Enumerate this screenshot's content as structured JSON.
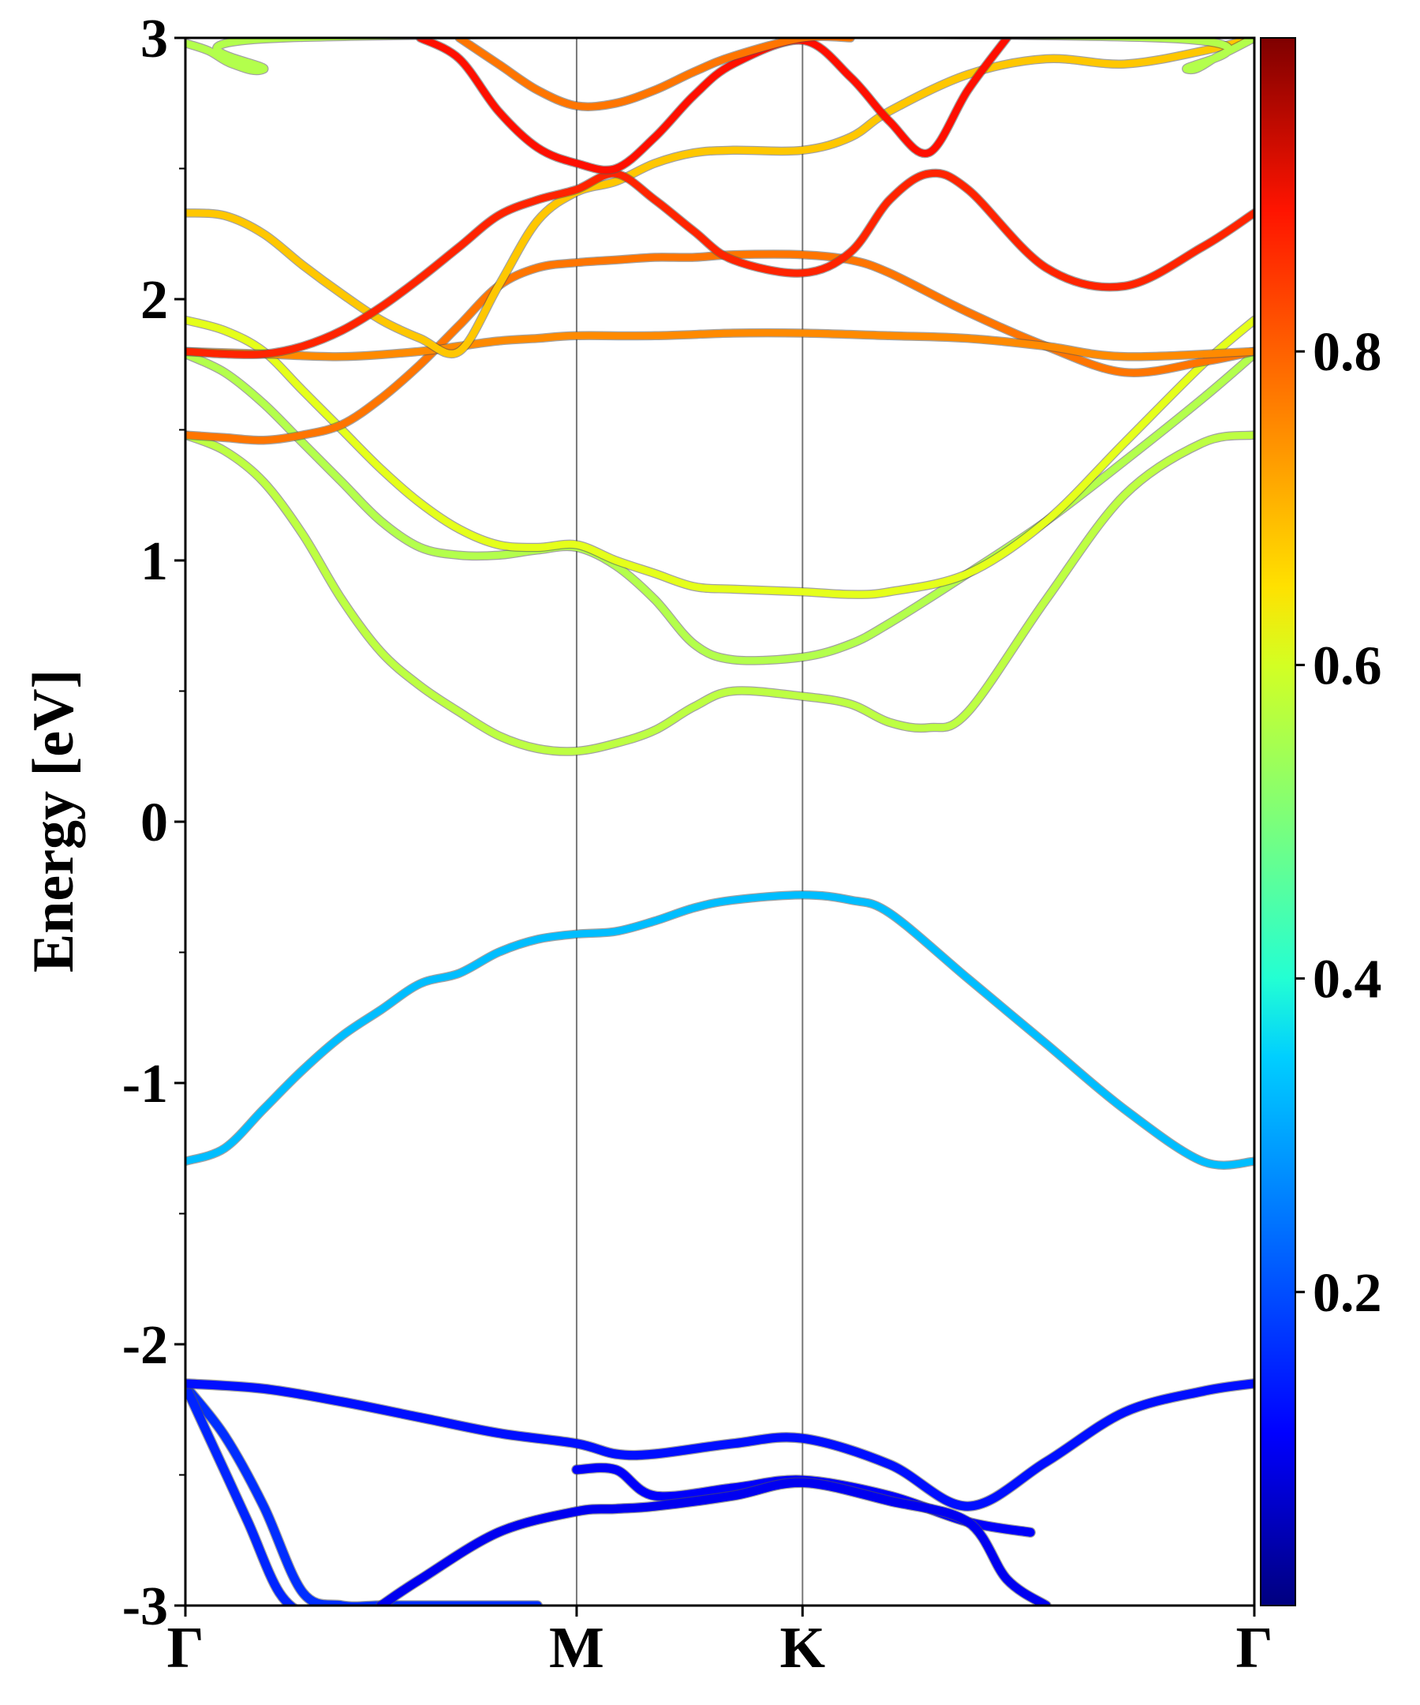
{
  "chart_data": {
    "type": "line",
    "title": "",
    "ylabel": "Energy [eV]",
    "xlabel": "",
    "ylim": [
      -3,
      3
    ],
    "y_ticks": [
      {
        "value": 3,
        "label": "3"
      },
      {
        "value": 2,
        "label": "2"
      },
      {
        "value": 1,
        "label": "1"
      },
      {
        "value": 0,
        "label": "0"
      },
      {
        "value": -1,
        "label": "-1"
      },
      {
        "value": -2,
        "label": "-2"
      },
      {
        "value": -3,
        "label": "-3"
      }
    ],
    "k_points": [
      {
        "pos": 0.0,
        "label": "Γ"
      },
      {
        "pos": 0.5,
        "label": "M"
      },
      {
        "pos": 0.7887,
        "label": "K"
      },
      {
        "pos": 1.3661,
        "label": "Γ"
      }
    ],
    "colorbar": {
      "range": [
        0.0,
        1.0
      ],
      "colormap": "jet",
      "ticks": [
        {
          "value": 0.2,
          "label": "0.2"
        },
        {
          "value": 0.4,
          "label": "0.4"
        },
        {
          "value": 0.6,
          "label": "0.6"
        },
        {
          "value": 0.8,
          "label": "0.8"
        }
      ]
    },
    "bands": [
      {
        "name": "valence-1",
        "weight": 0.17,
        "k": [
          0.0,
          0.05,
          0.1,
          0.15,
          0.2,
          0.25,
          0.3,
          0.35,
          0.4,
          0.45
        ],
        "E": [
          -2.16,
          -2.35,
          -2.62,
          -2.95,
          -3.0,
          -3.0,
          -3.0,
          -3.0,
          -3.0,
          -3.0
        ]
      },
      {
        "name": "valence-2",
        "weight": 0.16,
        "k": [
          0.0,
          0.04,
          0.08,
          0.12,
          0.16,
          0.2
        ],
        "E": [
          -2.16,
          -2.42,
          -2.68,
          -2.95,
          -3.05,
          -3.1
        ]
      },
      {
        "name": "valence-3",
        "weight": 0.14,
        "k": [
          0.0,
          0.1,
          0.2,
          0.3,
          0.4,
          0.5,
          0.55,
          0.6,
          0.7,
          0.7887,
          0.9,
          1.0,
          1.1,
          1.2,
          1.3,
          1.3661
        ],
        "E": [
          -2.15,
          -2.17,
          -2.22,
          -2.28,
          -2.34,
          -2.38,
          -2.42,
          -2.42,
          -2.38,
          -2.36,
          -2.46,
          -2.62,
          -2.45,
          -2.26,
          -2.18,
          -2.15
        ]
      },
      {
        "name": "valence-4",
        "weight": 0.12,
        "k": [
          0.5,
          0.55,
          0.6,
          0.7,
          0.7887,
          0.9,
          1.0,
          1.08
        ],
        "E": [
          -2.48,
          -2.48,
          -2.58,
          -2.55,
          -2.52,
          -2.58,
          -2.68,
          -2.72
        ]
      },
      {
        "name": "valence-5",
        "weight": 0.11,
        "k": [
          0.25,
          0.3,
          0.4,
          0.5,
          0.55,
          0.6,
          0.7,
          0.7887,
          0.9,
          1.0,
          1.05,
          1.1
        ],
        "E": [
          -3.0,
          -2.9,
          -2.72,
          -2.64,
          -2.63,
          -2.62,
          -2.58,
          -2.53,
          -2.6,
          -2.68,
          -2.9,
          -3.0
        ]
      },
      {
        "name": "conduction-1",
        "weight": 0.31,
        "k": [
          0.0,
          0.05,
          0.1,
          0.15,
          0.2,
          0.25,
          0.3,
          0.35,
          0.4,
          0.45,
          0.5,
          0.55,
          0.6,
          0.65,
          0.7,
          0.7887,
          0.85,
          0.9,
          1.0,
          1.1,
          1.2,
          1.3,
          1.3661
        ],
        "E": [
          -1.3,
          -1.25,
          -1.1,
          -0.95,
          -0.82,
          -0.72,
          -0.62,
          -0.58,
          -0.5,
          -0.45,
          -0.43,
          -0.42,
          -0.38,
          -0.33,
          -0.3,
          -0.28,
          -0.3,
          -0.35,
          -0.6,
          -0.85,
          -1.1,
          -1.3,
          -1.3
        ]
      },
      {
        "name": "conduction-2",
        "weight": 0.56,
        "k": [
          0.0,
          0.05,
          0.1,
          0.15,
          0.2,
          0.25,
          0.3,
          0.35,
          0.4,
          0.45,
          0.5,
          0.55,
          0.6,
          0.65,
          0.7,
          0.7887,
          0.85,
          0.9,
          0.95,
          1.0,
          1.1,
          1.2,
          1.3,
          1.3661
        ],
        "E": [
          1.48,
          1.42,
          1.3,
          1.1,
          0.85,
          0.65,
          0.52,
          0.42,
          0.33,
          0.28,
          0.27,
          0.3,
          0.35,
          0.44,
          0.5,
          0.48,
          0.45,
          0.38,
          0.36,
          0.42,
          0.85,
          1.25,
          1.45,
          1.48
        ]
      },
      {
        "name": "conduction-3",
        "weight": 0.55,
        "k": [
          0.0,
          0.05,
          0.1,
          0.15,
          0.2,
          0.25,
          0.3,
          0.35,
          0.4,
          0.45,
          0.5,
          0.55,
          0.6,
          0.65,
          0.7,
          0.7887,
          0.85,
          0.9,
          1.0,
          1.1,
          1.2,
          1.3,
          1.3661
        ],
        "E": [
          1.79,
          1.72,
          1.6,
          1.45,
          1.3,
          1.15,
          1.05,
          1.02,
          1.02,
          1.04,
          1.05,
          0.98,
          0.85,
          0.68,
          0.62,
          0.63,
          0.68,
          0.76,
          0.95,
          1.15,
          1.38,
          1.62,
          1.79
        ]
      },
      {
        "name": "conduction-4",
        "weight": 0.6,
        "k": [
          0.0,
          0.05,
          0.1,
          0.15,
          0.2,
          0.25,
          0.3,
          0.35,
          0.4,
          0.45,
          0.5,
          0.55,
          0.6,
          0.65,
          0.7,
          0.7887,
          0.85,
          0.9,
          1.0,
          1.1,
          1.2,
          1.3,
          1.3661
        ],
        "E": [
          1.92,
          1.88,
          1.8,
          1.65,
          1.5,
          1.35,
          1.22,
          1.12,
          1.06,
          1.05,
          1.06,
          1.0,
          0.95,
          0.9,
          0.89,
          0.88,
          0.87,
          0.88,
          0.95,
          1.15,
          1.45,
          1.75,
          1.92
        ]
      },
      {
        "name": "conduction-5",
        "weight": 0.76,
        "k": [
          0.0,
          0.05,
          0.1,
          0.15,
          0.2,
          0.25,
          0.3,
          0.35,
          0.4,
          0.45,
          0.5,
          0.55,
          0.6,
          0.65,
          0.7,
          0.7887,
          0.85,
          0.9,
          1.0,
          1.1,
          1.2,
          1.3,
          1.3661
        ],
        "E": [
          1.48,
          1.47,
          1.46,
          1.48,
          1.52,
          1.62,
          1.75,
          1.9,
          2.05,
          2.12,
          2.14,
          2.15,
          2.16,
          2.16,
          2.17,
          2.17,
          2.15,
          2.1,
          1.95,
          1.82,
          1.72,
          1.76,
          1.8
        ]
      },
      {
        "name": "conduction-6",
        "weight": 0.74,
        "k": [
          0.0,
          0.1,
          0.2,
          0.3,
          0.35,
          0.4,
          0.45,
          0.5,
          0.6,
          0.7,
          0.7887,
          0.9,
          1.0,
          1.1,
          1.2,
          1.3661
        ],
        "E": [
          1.8,
          1.79,
          1.78,
          1.8,
          1.82,
          1.84,
          1.85,
          1.86,
          1.86,
          1.87,
          1.87,
          1.86,
          1.85,
          1.82,
          1.78,
          1.8
        ]
      },
      {
        "name": "conduction-7",
        "weight": 0.68,
        "k": [
          0.0,
          0.05,
          0.1,
          0.15,
          0.2,
          0.25,
          0.3,
          0.35,
          0.4,
          0.45,
          0.5,
          0.55,
          0.6,
          0.65,
          0.7,
          0.7887,
          0.85,
          0.9,
          1.0,
          1.1,
          1.2,
          1.3,
          1.3661
        ],
        "E": [
          2.33,
          2.32,
          2.25,
          2.13,
          2.02,
          1.92,
          1.85,
          1.8,
          2.05,
          2.3,
          2.41,
          2.45,
          2.52,
          2.56,
          2.57,
          2.57,
          2.62,
          2.72,
          2.86,
          2.92,
          2.9,
          2.95,
          3.0
        ]
      },
      {
        "name": "conduction-8",
        "weight": 0.84,
        "k": [
          0.0,
          0.05,
          0.1,
          0.15,
          0.2,
          0.25,
          0.3,
          0.35,
          0.4,
          0.45,
          0.5,
          0.55,
          0.6,
          0.65,
          0.7,
          0.7887,
          0.85,
          0.9,
          0.95,
          1.0,
          1.1,
          1.2,
          1.3,
          1.3661
        ],
        "E": [
          1.8,
          1.79,
          1.79,
          1.82,
          1.88,
          1.97,
          2.08,
          2.2,
          2.32,
          2.38,
          2.42,
          2.48,
          2.38,
          2.26,
          2.15,
          2.1,
          2.18,
          2.38,
          2.48,
          2.42,
          2.12,
          2.05,
          2.2,
          2.33
        ]
      },
      {
        "name": "conduction-9",
        "weight": 0.86,
        "k": [
          0.3,
          0.35,
          0.4,
          0.45,
          0.5,
          0.55,
          0.6,
          0.65,
          0.7,
          0.7887,
          0.85,
          0.9,
          0.95,
          1.0,
          1.05
        ],
        "E": [
          3.0,
          2.92,
          2.72,
          2.58,
          2.52,
          2.5,
          2.62,
          2.78,
          2.9,
          2.99,
          2.85,
          2.68,
          2.56,
          2.8,
          3.0
        ]
      },
      {
        "name": "conduction-10",
        "weight": 0.76,
        "k": [
          0.35,
          0.4,
          0.45,
          0.5,
          0.55,
          0.6,
          0.65,
          0.7,
          0.7887,
          0.85
        ],
        "E": [
          3.0,
          2.9,
          2.8,
          2.74,
          2.75,
          2.8,
          2.87,
          2.93,
          3.0,
          3.0
        ]
      },
      {
        "name": "conduction-11",
        "weight": 0.55,
        "k": [
          0.0,
          0.03,
          0.06,
          0.1,
          0.13,
          1.24,
          1.28,
          1.32,
          1.3661
        ],
        "E": [
          2.98,
          2.95,
          2.9,
          2.88,
          3.0,
          3.0,
          2.88,
          2.93,
          3.0
        ]
      }
    ]
  }
}
